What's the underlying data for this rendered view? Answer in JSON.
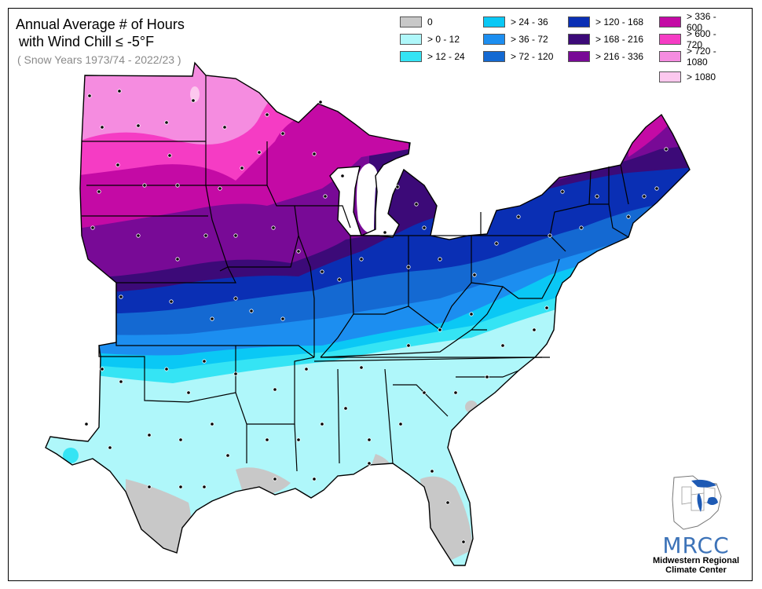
{
  "title_line1": "Annual Average # of Hours",
  "title_line2": "with Wind Chill ≤ -5°F",
  "subtitle": "( Snow Years 1973/74 - 2022/23 )",
  "legend": [
    {
      "label": "0",
      "color": "#c8c8c8"
    },
    {
      "label": "> 0 - 12",
      "color": "#aff7fa"
    },
    {
      "label": "> 12 - 24",
      "color": "#35e4f4"
    },
    {
      "label": "> 24 - 36",
      "color": "#0ac8f5"
    },
    {
      "label": "> 36 - 72",
      "color": "#1c8ef0"
    },
    {
      "label": "> 72 - 120",
      "color": "#1469d2"
    },
    {
      "label": "> 120 - 168",
      "color": "#0a2fb4"
    },
    {
      "label": "> 168 - 216",
      "color": "#3c0a78"
    },
    {
      "label": "> 216 - 336",
      "color": "#780a96"
    },
    {
      "label": "> 336 - 600",
      "color": "#c40aa5"
    },
    {
      "label": "> 600 - 720",
      "color": "#f53cc4"
    },
    {
      "label": "> 720 - 1080",
      "color": "#f58ce0"
    },
    {
      "label": "> 1080",
      "color": "#fcc8ee"
    }
  ],
  "logo": {
    "name": "MRCC",
    "line1": "Midwestern Regional",
    "line2": "Climate Center"
  }
}
